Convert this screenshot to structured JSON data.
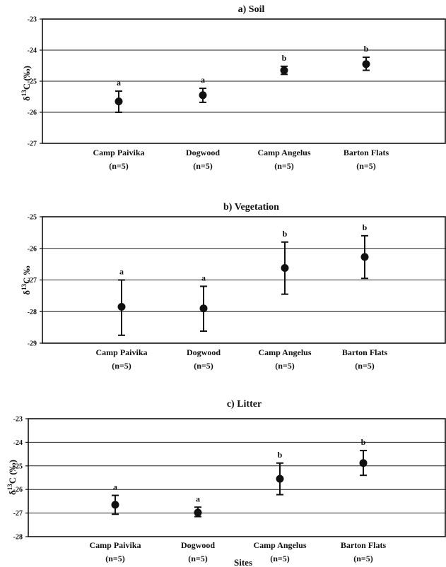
{
  "chart_data": [
    {
      "type": "scatter",
      "title": "a) Soil",
      "ylabel": "δ13C (‰)",
      "ylim": [
        -27,
        -23
      ],
      "yticks": [
        -23,
        -24,
        -25,
        -26,
        -27
      ],
      "grid": true,
      "categories": [
        "Camp Paivika",
        "Dogwood",
        "Camp Angelus",
        "Barton Flats"
      ],
      "sample_labels": [
        "(n=5)",
        "(n=5)",
        "(n=5)",
        "(n=5)"
      ],
      "values": [
        -25.65,
        -25.45,
        -24.65,
        -24.45
      ],
      "error_low": [
        -26.0,
        -25.68,
        -24.78,
        -24.65
      ],
      "error_high": [
        -25.32,
        -25.23,
        -24.52,
        -24.23
      ],
      "significance": [
        "a",
        "a",
        "b",
        "b"
      ]
    },
    {
      "type": "scatter",
      "title": "b) Vegetation",
      "ylabel": "δ13C ‰",
      "ylim": [
        -29,
        -25
      ],
      "yticks": [
        -25,
        -26,
        -27,
        -28,
        -29
      ],
      "grid": true,
      "categories": [
        "Camp Paivika",
        "Dogwood",
        "Camp Angelus",
        "Barton Flats"
      ],
      "sample_labels": [
        "(n=5)",
        "(n=5)",
        "(n=5)",
        "(n=5)"
      ],
      "values": [
        -27.85,
        -27.9,
        -26.62,
        -26.27
      ],
      "error_low": [
        -28.75,
        -28.62,
        -27.45,
        -26.95
      ],
      "error_high": [
        -27.0,
        -27.2,
        -25.8,
        -25.6
      ],
      "significance": [
        "a",
        "a",
        "b",
        "b"
      ]
    },
    {
      "type": "scatter",
      "title": "c) Litter",
      "ylabel": "δ13C (‰)",
      "xlabel": "Sites",
      "ylim": [
        -28,
        -23
      ],
      "yticks": [
        -23,
        -24,
        -25,
        -26,
        -27,
        -28
      ],
      "grid": true,
      "categories": [
        "Camp Paivika",
        "Dogwood",
        "Camp Angelus",
        "Barton Flats"
      ],
      "sample_labels": [
        "(n=5)",
        "(n=5)",
        "(n=5)",
        "(n=5)"
      ],
      "values": [
        -26.65,
        -26.98,
        -25.55,
        -24.88
      ],
      "error_low": [
        -27.05,
        -27.15,
        -26.22,
        -25.4
      ],
      "error_high": [
        -26.25,
        -26.75,
        -24.88,
        -24.35
      ],
      "significance": [
        "a",
        "a",
        "b",
        "b"
      ]
    }
  ]
}
